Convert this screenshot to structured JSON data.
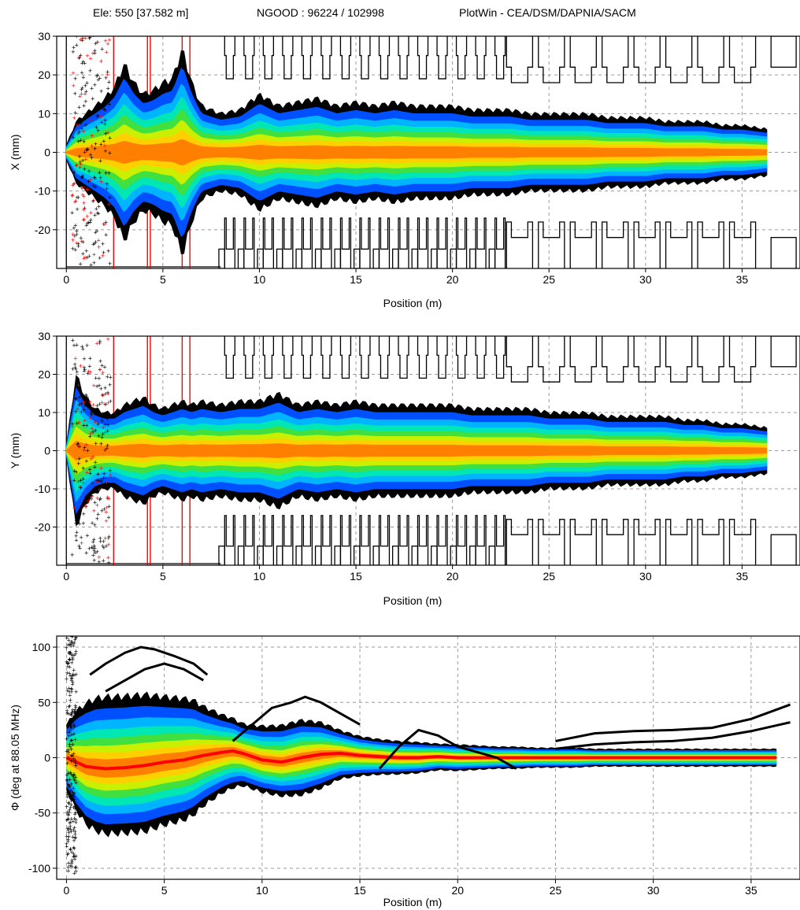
{
  "header": {
    "element": "Ele: 550 [37.582 m]",
    "ngood": "NGOOD : 96224 / 102998",
    "app": "PlotWin - CEA/DSM/DAPNIA/SACM"
  },
  "colors": {
    "halo": "#000000",
    "levels": [
      "#0050ff",
      "#00b4ff",
      "#00e6b4",
      "#40e040",
      "#c8f000",
      "#ffd000",
      "#ff8000",
      "#ff0000"
    ],
    "aperture": "#000000",
    "lost": "#ff0000",
    "grid": "#9a9a9a"
  },
  "chart_data": [
    {
      "type": "scatter",
      "id": "x",
      "xlabel": "Position (m)",
      "ylabel": "X (mm)",
      "xlim": [
        -0.5,
        38
      ],
      "ylim": [
        -30,
        30
      ],
      "xticks": [
        0,
        5,
        10,
        15,
        20,
        25,
        30,
        35
      ],
      "yticks": [
        -20,
        -10,
        0,
        10,
        20,
        30
      ],
      "grid": true,
      "aperture": true,
      "envelope": {
        "x": [
          0,
          0.5,
          1,
          1.5,
          2,
          2.5,
          3,
          3.5,
          4,
          4.5,
          5,
          5.5,
          6,
          6.5,
          7,
          8,
          9,
          10,
          11,
          12,
          13,
          14,
          15,
          16,
          17,
          18,
          19,
          20,
          21,
          22,
          23,
          24,
          25,
          26,
          27,
          28,
          29,
          30,
          31,
          32,
          33,
          34,
          35,
          36.3
        ],
        "y": [
          2,
          8,
          10,
          12,
          14,
          17,
          23,
          18,
          15,
          16,
          18,
          19,
          27,
          18,
          12,
          10,
          11,
          15,
          12,
          13,
          14,
          12,
          13,
          12,
          13,
          12,
          12,
          12,
          11,
          11,
          11,
          10,
          10,
          10,
          10,
          9,
          9,
          9,
          8,
          8,
          8,
          7,
          7,
          6
        ]
      }
    },
    {
      "type": "scatter",
      "id": "y",
      "xlabel": "Position (m)",
      "ylabel": "Y (mm)",
      "xlim": [
        -0.5,
        38
      ],
      "ylim": [
        -30,
        30
      ],
      "xticks": [
        0,
        5,
        10,
        15,
        20,
        25,
        30,
        35
      ],
      "yticks": [
        -20,
        -10,
        0,
        10,
        20,
        30
      ],
      "grid": true,
      "aperture": true,
      "envelope": {
        "x": [
          0,
          0.5,
          1,
          1.5,
          2,
          2.5,
          3,
          3.5,
          4,
          4.5,
          5,
          5.5,
          6,
          6.5,
          7,
          8,
          9,
          10,
          11,
          12,
          13,
          14,
          15,
          16,
          17,
          18,
          19,
          20,
          21,
          22,
          23,
          24,
          25,
          26,
          27,
          28,
          29,
          30,
          31,
          32,
          33,
          34,
          35,
          36.3
        ],
        "y": [
          2,
          20,
          14,
          11,
          10,
          10,
          12,
          13,
          14,
          12,
          11,
          12,
          13,
          12,
          13,
          12,
          13,
          13,
          15,
          12,
          13,
          12,
          13,
          12,
          12,
          12,
          12,
          12,
          11,
          11,
          11,
          11,
          10,
          10,
          10,
          9,
          9,
          9,
          9,
          8,
          8,
          7,
          7,
          6
        ]
      }
    },
    {
      "type": "scatter",
      "id": "phi",
      "xlabel": "Position (m)",
      "ylabel": "Φ (deg at 88.05 MHz)",
      "xlim": [
        -0.5,
        37.5
      ],
      "ylim": [
        -110,
        110
      ],
      "xticks": [
        0,
        5,
        10,
        15,
        20,
        25,
        30,
        35
      ],
      "yticks": [
        -100,
        -50,
        0,
        50,
        100
      ],
      "grid": true,
      "aperture": false,
      "envelope": {
        "x": [
          0,
          0.5,
          1,
          1.5,
          2,
          3,
          4,
          5,
          6,
          6.5,
          7,
          8,
          9,
          10,
          11,
          12,
          13,
          14,
          15,
          16,
          17,
          18,
          19,
          20,
          21,
          22,
          23,
          24,
          25,
          26,
          27,
          28,
          29,
          30,
          31,
          32,
          33,
          34,
          35,
          36.3
        ],
        "y": [
          30,
          45,
          55,
          60,
          62,
          62,
          62,
          58,
          55,
          52,
          45,
          35,
          28,
          30,
          32,
          34,
          30,
          22,
          18,
          16,
          15,
          14,
          12,
          12,
          11,
          10,
          10,
          9,
          9,
          9,
          8,
          8,
          8,
          8,
          8,
          8,
          8,
          8,
          8,
          8
        ]
      },
      "centroid": {
        "x": [
          0,
          1,
          2,
          3,
          4,
          5,
          6,
          7,
          8,
          8.5,
          9,
          10,
          11,
          12,
          13,
          14,
          15,
          16,
          17,
          18,
          19,
          20,
          25,
          30,
          36.3
        ],
        "y": [
          0,
          -8,
          -10,
          -9,
          -7,
          -4,
          -2,
          2,
          5,
          6,
          4,
          -2,
          -4,
          0,
          3,
          4,
          2,
          1,
          0,
          0,
          1,
          0,
          0,
          0,
          0
        ]
      },
      "outlier_tracks": [
        {
          "x": [
            1.2,
            2,
            3,
            3.8,
            4.5,
            5.5,
            6.5,
            7.2
          ],
          "y": [
            75,
            85,
            95,
            100,
            98,
            92,
            85,
            75
          ]
        },
        {
          "x": [
            2,
            3,
            4,
            5,
            6,
            7
          ],
          "y": [
            60,
            70,
            80,
            85,
            80,
            70
          ]
        },
        {
          "x": [
            8.5,
            9.5,
            10.5,
            11.5,
            12.2,
            13,
            14,
            15
          ],
          "y": [
            15,
            30,
            45,
            50,
            55,
            50,
            40,
            30
          ]
        },
        {
          "x": [
            16,
            17,
            18,
            19,
            20,
            21,
            22,
            23
          ],
          "y": [
            -10,
            10,
            25,
            20,
            10,
            5,
            0,
            -10
          ]
        },
        {
          "x": [
            25,
            27,
            29,
            31,
            33,
            35,
            37
          ],
          "y": [
            15,
            22,
            24,
            25,
            27,
            35,
            48
          ]
        },
        {
          "x": [
            25,
            27,
            29,
            31,
            33,
            35,
            37
          ],
          "y": [
            8,
            12,
            14,
            15,
            18,
            24,
            32
          ]
        }
      ]
    }
  ]
}
